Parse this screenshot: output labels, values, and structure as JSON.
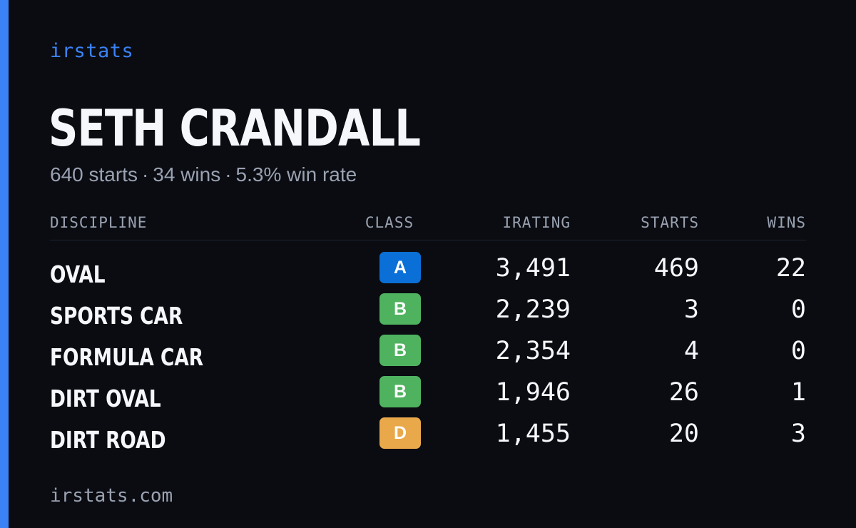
{
  "brand": "irstats",
  "driver": {
    "name": "SETH CRANDALL",
    "starts": "640 starts",
    "wins": "34 wins",
    "win_rate": "5.3% win rate",
    "separator": "·"
  },
  "table": {
    "headers": {
      "discipline": "DISCIPLINE",
      "class": "CLASS",
      "irating": "IRATING",
      "starts": "STARTS",
      "wins": "WINS"
    },
    "rows": [
      {
        "discipline": "OVAL",
        "class": "A",
        "irating": "3,491",
        "starts": "469",
        "wins": "22"
      },
      {
        "discipline": "SPORTS CAR",
        "class": "B",
        "irating": "2,239",
        "starts": "3",
        "wins": "0"
      },
      {
        "discipline": "FORMULA CAR",
        "class": "B",
        "irating": "2,354",
        "starts": "4",
        "wins": "0"
      },
      {
        "discipline": "DIRT OVAL",
        "class": "B",
        "irating": "1,946",
        "starts": "26",
        "wins": "1"
      },
      {
        "discipline": "DIRT ROAD",
        "class": "D",
        "irating": "1,455",
        "starts": "20",
        "wins": "3"
      }
    ]
  },
  "class_colors": {
    "A": "#0a6fd6",
    "B": "#4fb25f",
    "D": "#e9a94b"
  },
  "accent_color": "#3b82f6",
  "footer": "irstats.com"
}
